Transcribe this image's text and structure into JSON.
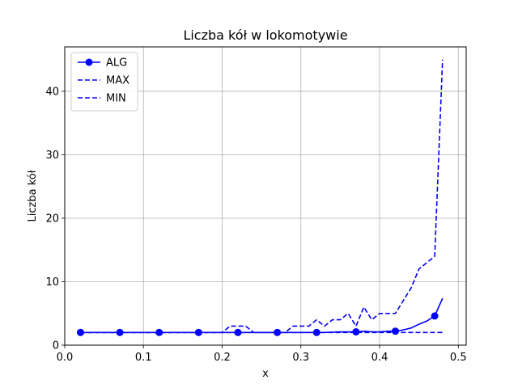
{
  "chart_data": {
    "type": "line",
    "title": "Liczba kół w lokomotywie",
    "xlabel": "x",
    "ylabel": "Liczba kół",
    "xlim": [
      0.0,
      0.51
    ],
    "ylim": [
      0,
      47
    ],
    "xticks": [
      0.0,
      0.1,
      0.2,
      0.3,
      0.4,
      0.5
    ],
    "xtick_labels": [
      "0.0",
      "0.1",
      "0.2",
      "0.3",
      "0.4",
      "0.5"
    ],
    "yticks": [
      0,
      10,
      20,
      30,
      40
    ],
    "ytick_labels": [
      "0",
      "10",
      "20",
      "30",
      "40"
    ],
    "grid": true,
    "legend_position": "top-left",
    "colors": {
      "series": "#0000ff",
      "grid": "#b0b0b0"
    },
    "x": [
      0.02,
      0.03,
      0.04,
      0.05,
      0.06,
      0.07,
      0.08,
      0.09,
      0.1,
      0.11,
      0.12,
      0.13,
      0.14,
      0.15,
      0.16,
      0.17,
      0.18,
      0.19,
      0.2,
      0.21,
      0.22,
      0.23,
      0.24,
      0.25,
      0.26,
      0.27,
      0.28,
      0.29,
      0.3,
      0.31,
      0.32,
      0.33,
      0.34,
      0.35,
      0.36,
      0.37,
      0.38,
      0.39,
      0.4,
      0.41,
      0.42,
      0.43,
      0.44,
      0.45,
      0.46,
      0.47,
      0.48
    ],
    "series": [
      {
        "name": "ALG",
        "style": "solid",
        "marker": "circle",
        "marker_every": 5,
        "values": [
          2,
          2,
          2,
          2,
          2,
          2,
          2,
          2,
          2,
          2,
          2,
          2,
          2,
          2,
          2,
          2,
          2,
          2,
          2,
          2,
          2,
          2,
          2,
          2,
          2,
          2,
          2,
          2,
          2,
          2,
          2,
          2,
          2.05,
          2.1,
          2.1,
          2.1,
          2.2,
          2.1,
          2.1,
          2.2,
          2.2,
          2.4,
          2.7,
          3.3,
          3.8,
          4.6,
          7.4
        ]
      },
      {
        "name": "MAX",
        "style": "dashed",
        "values": [
          2,
          2,
          2,
          2,
          2,
          2,
          2,
          2,
          2,
          2,
          2,
          2,
          2,
          2,
          2,
          2,
          2,
          2,
          2,
          3,
          3,
          3,
          2,
          2,
          2,
          2,
          2,
          3,
          3,
          3,
          4,
          3,
          4,
          4,
          5,
          3,
          6,
          4,
          5,
          5,
          5,
          7,
          9,
          12,
          13,
          14,
          45
        ]
      },
      {
        "name": "MIN",
        "style": "dashed",
        "values": [
          2,
          2,
          2,
          2,
          2,
          2,
          2,
          2,
          2,
          2,
          2,
          2,
          2,
          2,
          2,
          2,
          2,
          2,
          2,
          2,
          2,
          2,
          2,
          2,
          2,
          2,
          2,
          2,
          2,
          2,
          2,
          2,
          2,
          2,
          2,
          2,
          2,
          2,
          2,
          2,
          2,
          2,
          2,
          2,
          2,
          2,
          2
        ]
      }
    ]
  }
}
